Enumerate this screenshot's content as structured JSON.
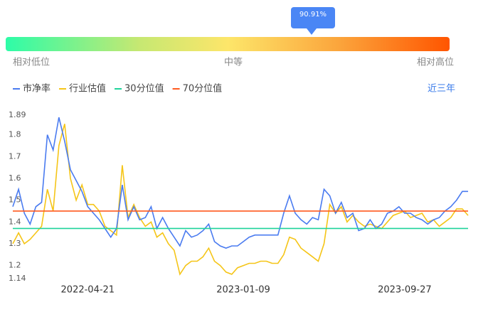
{
  "header": {
    "percentile_label": "90.91%",
    "low": "相对低位",
    "mid": "中等",
    "high": "相对高位",
    "range_button": "近三年"
  },
  "chart_data": {
    "type": "line",
    "categories": [
      null,
      null,
      null,
      null,
      null,
      null,
      null,
      null,
      null,
      null,
      null,
      null,
      null,
      "2022-04-21",
      null,
      null,
      null,
      null,
      null,
      null,
      null,
      null,
      null,
      null,
      null,
      null,
      null,
      null,
      null,
      null,
      null,
      null,
      null,
      null,
      null,
      null,
      null,
      null,
      null,
      null,
      "2023-01-09",
      null,
      null,
      null,
      null,
      null,
      null,
      null,
      null,
      null,
      null,
      null,
      null,
      null,
      null,
      null,
      null,
      null,
      null,
      null,
      null,
      null,
      null,
      null,
      null,
      null,
      null,
      null,
      "2023-09-27",
      null,
      null,
      null,
      null,
      null,
      null,
      null,
      null,
      null,
      null,
      null
    ],
    "series": [
      {
        "name": "市净率",
        "color": "#4a7bf0",
        "values": [
          1.47,
          1.55,
          1.44,
          1.39,
          1.47,
          1.49,
          1.8,
          1.73,
          1.88,
          1.77,
          1.64,
          1.59,
          1.54,
          1.47,
          1.44,
          1.41,
          1.37,
          1.33,
          1.37,
          1.57,
          1.41,
          1.47,
          1.41,
          1.42,
          1.47,
          1.37,
          1.42,
          1.37,
          1.33,
          1.29,
          1.36,
          1.33,
          1.34,
          1.36,
          1.39,
          1.31,
          1.29,
          1.28,
          1.29,
          1.29,
          1.31,
          1.33,
          1.34,
          1.34,
          1.34,
          1.34,
          1.34,
          1.44,
          1.52,
          1.44,
          1.41,
          1.39,
          1.42,
          1.41,
          1.55,
          1.52,
          1.44,
          1.49,
          1.42,
          1.44,
          1.36,
          1.37,
          1.41,
          1.37,
          1.39,
          1.44,
          1.45,
          1.47,
          1.44,
          1.44,
          1.42,
          1.41,
          1.39,
          1.41,
          1.42,
          1.45,
          1.47,
          1.5,
          1.54,
          1.54
        ]
      },
      {
        "name": "行业估值",
        "color": "#f5c518",
        "values": [
          1.3,
          1.35,
          1.3,
          1.32,
          1.35,
          1.38,
          1.55,
          1.45,
          1.75,
          1.85,
          1.6,
          1.5,
          1.57,
          1.48,
          1.48,
          1.45,
          1.38,
          1.36,
          1.34,
          1.66,
          1.42,
          1.48,
          1.42,
          1.38,
          1.4,
          1.33,
          1.35,
          1.3,
          1.27,
          1.16,
          1.2,
          1.22,
          1.22,
          1.24,
          1.28,
          1.22,
          1.2,
          1.17,
          1.16,
          1.19,
          1.2,
          1.21,
          1.21,
          1.22,
          1.22,
          1.21,
          1.21,
          1.25,
          1.33,
          1.32,
          1.28,
          1.26,
          1.24,
          1.22,
          1.3,
          1.48,
          1.44,
          1.47,
          1.4,
          1.43,
          1.4,
          1.38,
          1.39,
          1.38,
          1.37,
          1.4,
          1.43,
          1.44,
          1.45,
          1.42,
          1.43,
          1.44,
          1.4,
          1.41,
          1.38,
          1.4,
          1.42,
          1.46,
          1.46,
          1.43
        ]
      },
      {
        "name": "30分位值",
        "color": "#1fd39a",
        "value": 1.37
      },
      {
        "name": "70分位值",
        "color": "#ff5a1f",
        "value": 1.45
      }
    ],
    "ylim": [
      1.14,
      1.89
    ],
    "yticks": [
      1.14,
      1.2,
      1.3,
      1.4,
      1.5,
      1.6,
      1.7,
      1.8,
      1.89
    ]
  }
}
